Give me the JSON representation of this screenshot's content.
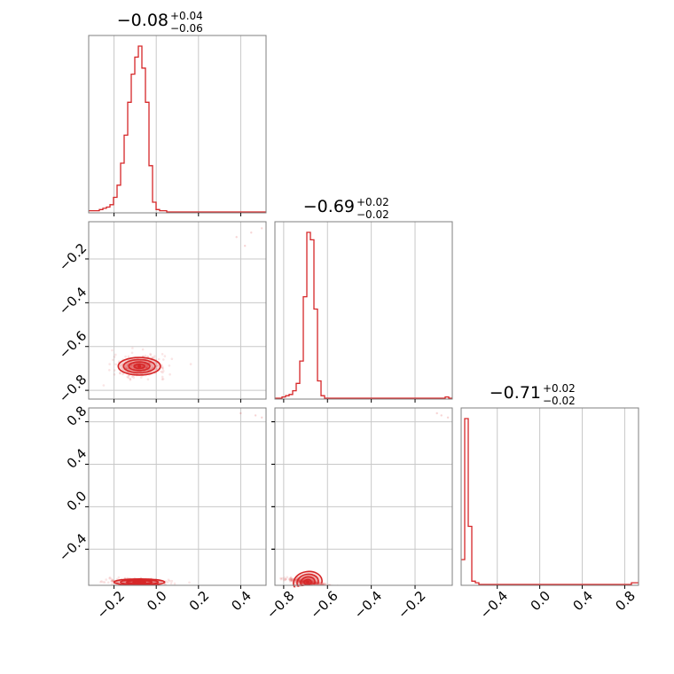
{
  "chart_data": {
    "type": "corner",
    "color": "#d62728",
    "parameters": [
      {
        "title": {
          "median": "−0.08",
          "plus": "+0.04",
          "minus": "−0.06"
        },
        "range": [
          -0.32,
          0.52
        ],
        "ticks": [
          -0.2,
          0.0,
          0.2,
          0.4
        ],
        "tick_labels": [
          "−0.2",
          "0.0",
          "0.2",
          "0.4"
        ]
      },
      {
        "title": {
          "median": "−0.69",
          "plus": "+0.02",
          "minus": "−0.02"
        },
        "range": [
          -0.84,
          -0.03
        ],
        "ticks": [
          -0.8,
          -0.6,
          -0.4,
          -0.2
        ],
        "tick_labels": [
          "−0.8",
          "−0.6",
          "−0.4",
          "−0.2"
        ]
      },
      {
        "title": {
          "median": "−0.71",
          "plus": "+0.02",
          "minus": "−0.02"
        },
        "range": [
          -0.74,
          0.93
        ],
        "ticks": [
          -0.4,
          0.0,
          0.4,
          0.8
        ],
        "tick_labels": [
          "−0.4",
          "0.0",
          "0.4",
          "0.8"
        ]
      }
    ],
    "histograms": [
      {
        "param": 0,
        "edges_start": -0.32,
        "bin_width": 0.0168,
        "counts": [
          1,
          1,
          1,
          2,
          3,
          4,
          6,
          12,
          22,
          40,
          63,
          90,
          113,
          127,
          136,
          118,
          90,
          38,
          8,
          2,
          1,
          1,
          0,
          0,
          0,
          0,
          0,
          0,
          0,
          0,
          0,
          0,
          0,
          0,
          0,
          0,
          0,
          0,
          0,
          0,
          0,
          0,
          0,
          0,
          0,
          0,
          0,
          0,
          0,
          0
        ]
      },
      {
        "param": 1,
        "edges_start": -0.84,
        "bin_width": 0.0162,
        "counts": [
          0,
          0,
          1,
          2,
          3,
          6,
          12,
          30,
          82,
          134,
          128,
          72,
          14,
          2,
          0,
          0,
          0,
          0,
          0,
          0,
          0,
          0,
          0,
          0,
          0,
          0,
          0,
          0,
          0,
          0,
          0,
          0,
          0,
          0,
          0,
          0,
          0,
          0,
          0,
          0,
          0,
          0,
          0,
          0,
          0,
          0,
          0,
          0,
          1,
          0
        ]
      },
      {
        "param": 2,
        "edges_start": -0.74,
        "bin_width": 0.0334,
        "counts": [
          15,
          100,
          35,
          2,
          1,
          0,
          0,
          0,
          0,
          0,
          0,
          0,
          0,
          0,
          0,
          0,
          0,
          0,
          0,
          0,
          0,
          0,
          0,
          0,
          0,
          0,
          0,
          0,
          0,
          0,
          0,
          0,
          0,
          0,
          0,
          0,
          0,
          0,
          0,
          0,
          0,
          0,
          0,
          0,
          0,
          0,
          0,
          0,
          1,
          1
        ]
      }
    ],
    "pairs": [
      {
        "x_param": 0,
        "y_param": 1,
        "center": [
          -0.08,
          -0.69
        ],
        "spread": [
          0.05,
          0.02
        ],
        "sigma_levels": [
          0.5,
          1.0,
          1.5,
          2.0
        ],
        "outliers": [
          [
            0.38,
            -0.1
          ],
          [
            0.45,
            -0.08
          ],
          [
            0.5,
            -0.06
          ],
          [
            0.42,
            -0.14
          ]
        ]
      },
      {
        "x_param": 0,
        "y_param": 2,
        "center": [
          -0.08,
          -0.71
        ],
        "spread": [
          0.06,
          0.015
        ],
        "sigma_levels": [
          0.5,
          1.0,
          1.5,
          2.0
        ],
        "outliers": [
          [
            0.4,
            0.88
          ],
          [
            0.47,
            0.86
          ],
          [
            0.5,
            0.84
          ]
        ]
      },
      {
        "x_param": 1,
        "y_param": 2,
        "center": [
          -0.69,
          -0.71
        ],
        "spread": [
          0.04,
          0.015
        ],
        "correlation": -0.85,
        "sigma_levels": [
          0.5,
          1.0,
          1.5,
          2.0
        ],
        "outliers": [
          [
            -0.1,
            0.88
          ],
          [
            -0.08,
            0.86
          ],
          [
            -0.05,
            0.84
          ]
        ]
      }
    ],
    "grid": true
  }
}
